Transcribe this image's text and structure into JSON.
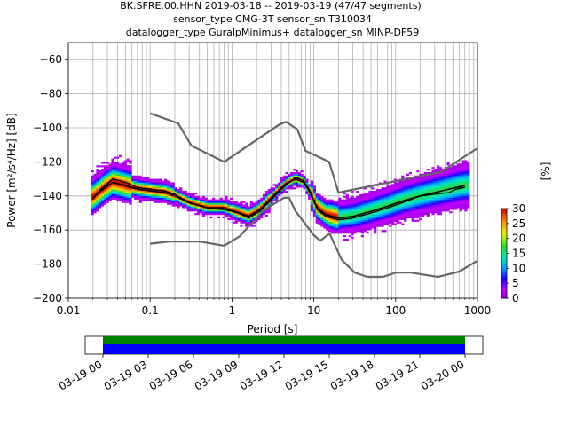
{
  "title": {
    "line1": "BK.SFRE.00.HHN   2019-03-18 -- 2019-03-19  (47/47 segments)",
    "line2": "sensor_type CMG-3T sensor_sn T310034",
    "line3": "datalogger_type GuralpMinimus+ datalogger_sn MINP-DF59"
  },
  "colors": {
    "noise_model": "#666666",
    "mean_curve": "#000000",
    "grid": "#b0b0b0",
    "coverage_top": "#008000",
    "coverage_bottom": "#0000ff"
  },
  "chart_data": {
    "type": "heatmap",
    "xlabel": "Period [s]",
    "ylabel": "Power [m²/s⁴/Hz] [dB]",
    "xscale": "log",
    "xlim": [
      0.01,
      1000
    ],
    "ylim": [
      -200,
      -50
    ],
    "x_ticks": [
      0.01,
      0.1,
      1,
      10,
      100,
      1000
    ],
    "x_tick_labels": [
      "0.01",
      "0.1",
      "1",
      "10",
      "100",
      "1000"
    ],
    "y_ticks": [
      -200,
      -180,
      -160,
      -140,
      -120,
      -100,
      -80,
      -60
    ],
    "y_tick_labels": [
      "−200",
      "−180",
      "−160",
      "−140",
      "−120",
      "−100",
      "−80",
      "−60"
    ],
    "grid": true,
    "colorbar": {
      "label": "[%]",
      "range": [
        0,
        30
      ],
      "ticks": [
        0,
        5,
        10,
        15,
        20,
        25,
        30
      ],
      "tick_labels": [
        "0",
        "5",
        "10",
        "15",
        "20",
        "25",
        "30"
      ]
    },
    "series": [
      {
        "role": "high_noise_model",
        "points": [
          [
            0.1,
            -91.5
          ],
          [
            0.22,
            -97.4
          ],
          [
            0.32,
            -110.5
          ],
          [
            0.8,
            -120
          ],
          [
            3.8,
            -98
          ],
          [
            4.6,
            -96.5
          ],
          [
            6.3,
            -101
          ],
          [
            7.9,
            -113.5
          ],
          [
            15.4,
            -120
          ],
          [
            20,
            -138
          ],
          [
            354.8,
            -126
          ],
          [
            1000,
            -112
          ]
        ]
      },
      {
        "role": "low_noise_model",
        "points": [
          [
            0.1,
            -168
          ],
          [
            0.17,
            -166.7
          ],
          [
            0.4,
            -166.7
          ],
          [
            0.8,
            -169.2
          ],
          [
            1.24,
            -163.7
          ],
          [
            2.4,
            -148.6
          ],
          [
            4.3,
            -141.1
          ],
          [
            5,
            -141.1
          ],
          [
            6,
            -149
          ],
          [
            10,
            -163
          ],
          [
            12,
            -166.2
          ],
          [
            15.6,
            -162.1
          ],
          [
            21.9,
            -177.5
          ],
          [
            31.6,
            -185
          ],
          [
            45,
            -187.5
          ],
          [
            70,
            -187.5
          ],
          [
            101,
            -185
          ],
          [
            154,
            -185
          ],
          [
            328,
            -187.5
          ],
          [
            600,
            -184.4
          ],
          [
            1000,
            -178
          ]
        ]
      },
      {
        "role": "mean_psd",
        "points": [
          [
            0.02,
            -142
          ],
          [
            0.025,
            -136
          ],
          [
            0.035,
            -130
          ],
          [
            0.05,
            -132
          ],
          [
            0.07,
            -135
          ],
          [
            0.1,
            -136
          ],
          [
            0.15,
            -137
          ],
          [
            0.2,
            -139
          ],
          [
            0.3,
            -144
          ],
          [
            0.5,
            -147
          ],
          [
            0.8,
            -148
          ],
          [
            1.2,
            -150
          ],
          [
            1.6,
            -153
          ],
          [
            2.2,
            -149
          ],
          [
            3.2,
            -141
          ],
          [
            4.5,
            -134
          ],
          [
            6,
            -129
          ],
          [
            7.5,
            -131
          ],
          [
            9,
            -137
          ],
          [
            11,
            -148
          ],
          [
            14,
            -152
          ],
          [
            20,
            -154
          ],
          [
            30,
            -153
          ],
          [
            50,
            -150
          ],
          [
            80,
            -147
          ],
          [
            120,
            -144
          ],
          [
            200,
            -140
          ],
          [
            300,
            -139
          ],
          [
            450,
            -138
          ],
          [
            550,
            -136
          ],
          [
            700,
            -135
          ]
        ]
      },
      {
        "role": "mode_psd",
        "points": [
          [
            0.02,
            -141
          ],
          [
            0.025,
            -137
          ],
          [
            0.035,
            -132
          ],
          [
            0.05,
            -134
          ],
          [
            0.07,
            -136
          ],
          [
            0.1,
            -137
          ],
          [
            0.15,
            -138
          ],
          [
            0.2,
            -140
          ],
          [
            0.3,
            -144
          ],
          [
            0.5,
            -147
          ],
          [
            0.8,
            -147
          ],
          [
            1.2,
            -150
          ],
          [
            1.6,
            -152
          ],
          [
            2.2,
            -148
          ],
          [
            3.2,
            -140
          ],
          [
            4.5,
            -133
          ],
          [
            6,
            -130
          ],
          [
            7.5,
            -132
          ],
          [
            9,
            -138
          ],
          [
            11,
            -147
          ],
          [
            14,
            -151
          ],
          [
            20,
            -153
          ],
          [
            30,
            -152
          ],
          [
            50,
            -149
          ],
          [
            80,
            -146
          ],
          [
            120,
            -143
          ],
          [
            200,
            -140
          ],
          [
            300,
            -138
          ],
          [
            450,
            -136
          ],
          [
            550,
            -135
          ],
          [
            700,
            -134
          ]
        ]
      }
    ],
    "coverage": {
      "tick_labels": [
        "03-19 00",
        "03-19 03",
        "03-19 06",
        "03-19 09",
        "03-19 12",
        "03-19 15",
        "03-19 18",
        "03-19 21",
        "03-20 00"
      ]
    }
  }
}
